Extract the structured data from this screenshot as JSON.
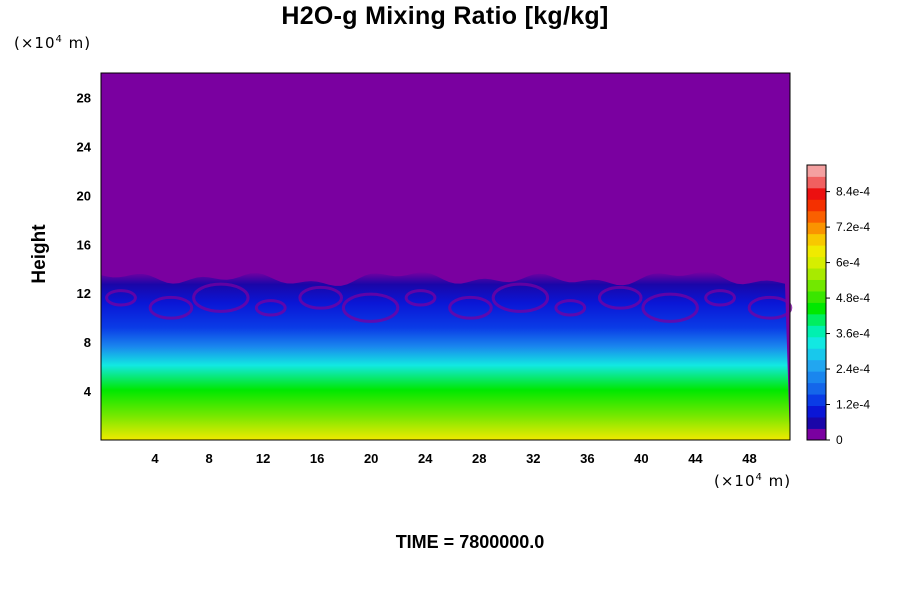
{
  "chart_data": {
    "type": "heatmap",
    "title": "H2O-g Mixing Ratio [kg/kg]",
    "ylabel": "Height",
    "xlabel": "",
    "x_unit": {
      "prefix": "(×10",
      "exp": "4",
      "suffix": " m)"
    },
    "y_unit": {
      "prefix": "(×10",
      "exp": "4",
      "suffix": " m)"
    },
    "xlim": [
      0,
      51
    ],
    "ylim": [
      0,
      30
    ],
    "x_ticks": [
      4,
      8,
      12,
      16,
      20,
      24,
      28,
      32,
      36,
      40,
      44,
      48
    ],
    "y_ticks": [
      4,
      8,
      12,
      16,
      20,
      24,
      28
    ],
    "colorbar": {
      "min": 0,
      "max": 0.00093,
      "tick_labels": [
        "0",
        "1.2e-4",
        "2.4e-4",
        "3.6e-4",
        "4.8e-4",
        "6e-4",
        "7.2e-4",
        "8.4e-4"
      ],
      "tick_values": [
        0,
        0.00012,
        0.00024,
        0.00036,
        0.00048,
        0.0006,
        0.00072,
        0.00084
      ],
      "colors": [
        "#7a00a0",
        "#1a06a8",
        "#0a16d6",
        "#0a3ce6",
        "#1466ea",
        "#1a86ee",
        "#22a6f0",
        "#18c8ec",
        "#12e8e2",
        "#00f0b0",
        "#00ee60",
        "#00e800",
        "#3ae600",
        "#72e800",
        "#a8ea00",
        "#d6ee00",
        "#f0ea00",
        "#f8c800",
        "#fa9400",
        "#fa6000",
        "#f43000",
        "#ec1010",
        "#f06060",
        "#f4a0a0"
      ]
    },
    "profile": [
      {
        "height": 0,
        "value": 0.00062
      },
      {
        "height": 2,
        "value": 0.00053
      },
      {
        "height": 4,
        "value": 0.00043
      },
      {
        "height": 6,
        "value": 0.00032
      },
      {
        "height": 7.5,
        "value": 0.00022
      },
      {
        "height": 9,
        "value": 0.00014
      },
      {
        "height": 11,
        "value": 0.0001
      },
      {
        "height": 12.5,
        "value": 4e-05
      },
      {
        "height": 13.5,
        "value": 0
      },
      {
        "height": 30,
        "value": 0
      }
    ],
    "top_boundary_height_approx": 13.5
  },
  "footer": {
    "time_label": "TIME = 7800000.0"
  }
}
